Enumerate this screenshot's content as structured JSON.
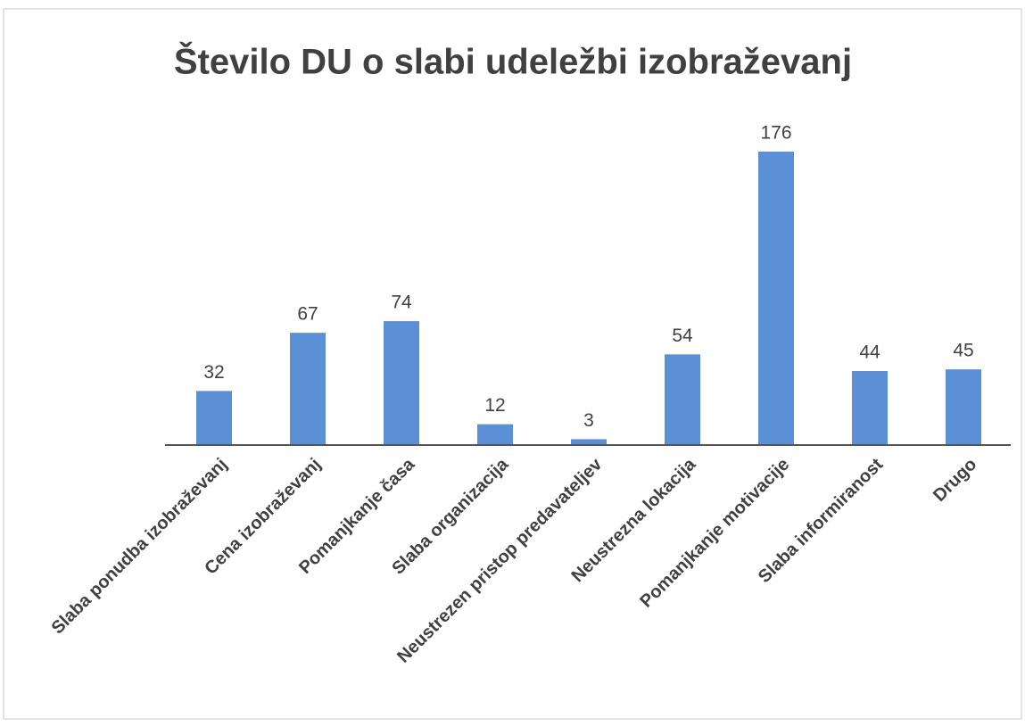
{
  "chart_data": {
    "type": "bar",
    "title": "Število DU o slabi udeležbi izobraževanj",
    "categories": [
      "Slaba ponudba izobraževanj",
      "Cena izobraževanj",
      "Pomanjkanje časa",
      "Slaba organizacija",
      "Neustrezen pristop predavateljev",
      "Neustrezna lokacija",
      "Pomanjkanje motivacije",
      "Slaba informiranost",
      "Drugo"
    ],
    "values": [
      32,
      67,
      74,
      12,
      3,
      54,
      176,
      44,
      45
    ],
    "color": "#5b8fd6",
    "grid": false
  }
}
